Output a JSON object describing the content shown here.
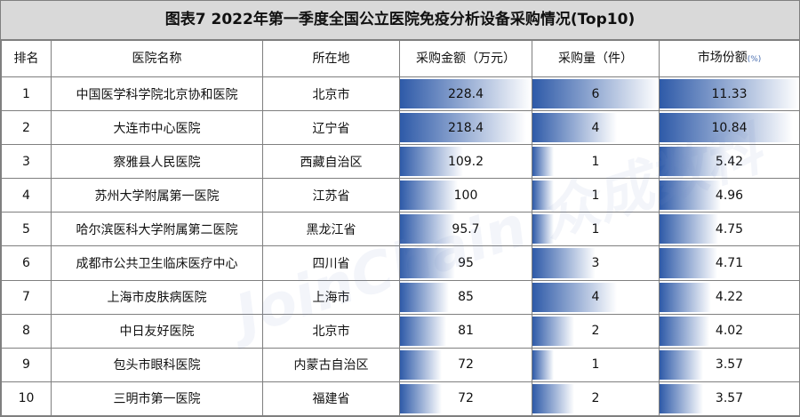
{
  "title": "图表7   2022年第一季度全国公立医院免疫分析设备采购情况(Top10)",
  "headers": {
    "rank": "排名",
    "hospital": "医院名称",
    "location": "所在地",
    "amount": "采购金额（万元）",
    "quantity": "采购量（件）",
    "share": "市场份额",
    "share_unit": "(%)"
  },
  "watermark": "JoinChain 众成数科",
  "colors": {
    "bar_dark": "#2e5aa8",
    "bar_light": "#ffffff",
    "header_bg": "#d9d9d9",
    "border": "#7f7f7f"
  },
  "chart_data": {
    "type": "table",
    "title": "图表7   2022年第一季度全国公立医院免疫分析设备采购情况(Top10)",
    "columns": [
      "排名",
      "医院名称",
      "所在地",
      "采购金额（万元）",
      "采购量（件）",
      "市场份额(%)"
    ],
    "rows": [
      {
        "rank": "1",
        "hospital": "中国医学科学院北京协和医院",
        "location": "北京市",
        "amount": 228.4,
        "amount_label": "228.4",
        "quantity": 6,
        "quantity_label": "6",
        "share": 11.33,
        "share_label": "11.33"
      },
      {
        "rank": "2",
        "hospital": "大连市中心医院",
        "location": "辽宁省",
        "amount": 218.4,
        "amount_label": "218.4",
        "quantity": 4,
        "quantity_label": "4",
        "share": 10.84,
        "share_label": "10.84"
      },
      {
        "rank": "3",
        "hospital": "察雅县人民医院",
        "location": "西藏自治区",
        "amount": 109.2,
        "amount_label": "109.2",
        "quantity": 1,
        "quantity_label": "1",
        "share": 5.42,
        "share_label": "5.42"
      },
      {
        "rank": "4",
        "hospital": "苏州大学附属第一医院",
        "location": "江苏省",
        "amount": 100,
        "amount_label": "100",
        "quantity": 1,
        "quantity_label": "1",
        "share": 4.96,
        "share_label": "4.96"
      },
      {
        "rank": "5",
        "hospital": "哈尔滨医科大学附属第二医院",
        "location": "黑龙江省",
        "amount": 95.7,
        "amount_label": "95.7",
        "quantity": 1,
        "quantity_label": "1",
        "share": 4.75,
        "share_label": "4.75"
      },
      {
        "rank": "6",
        "hospital": "成都市公共卫生临床医疗中心",
        "location": "四川省",
        "amount": 95,
        "amount_label": "95",
        "quantity": 3,
        "quantity_label": "3",
        "share": 4.71,
        "share_label": "4.71"
      },
      {
        "rank": "7",
        "hospital": "上海市皮肤病医院",
        "location": "上海市",
        "amount": 85,
        "amount_label": "85",
        "quantity": 4,
        "quantity_label": "4",
        "share": 4.22,
        "share_label": "4.22"
      },
      {
        "rank": "8",
        "hospital": "中日友好医院",
        "location": "北京市",
        "amount": 81,
        "amount_label": "81",
        "quantity": 2,
        "quantity_label": "2",
        "share": 4.02,
        "share_label": "4.02"
      },
      {
        "rank": "9",
        "hospital": "包头市眼科医院",
        "location": "内蒙古自治区",
        "amount": 72,
        "amount_label": "72",
        "quantity": 1,
        "quantity_label": "1",
        "share": 3.57,
        "share_label": "3.57"
      },
      {
        "rank": "10",
        "hospital": "三明市第一医院",
        "location": "福建省",
        "amount": 72,
        "amount_label": "72",
        "quantity": 2,
        "quantity_label": "2",
        "share": 3.57,
        "share_label": "3.57"
      }
    ]
  }
}
